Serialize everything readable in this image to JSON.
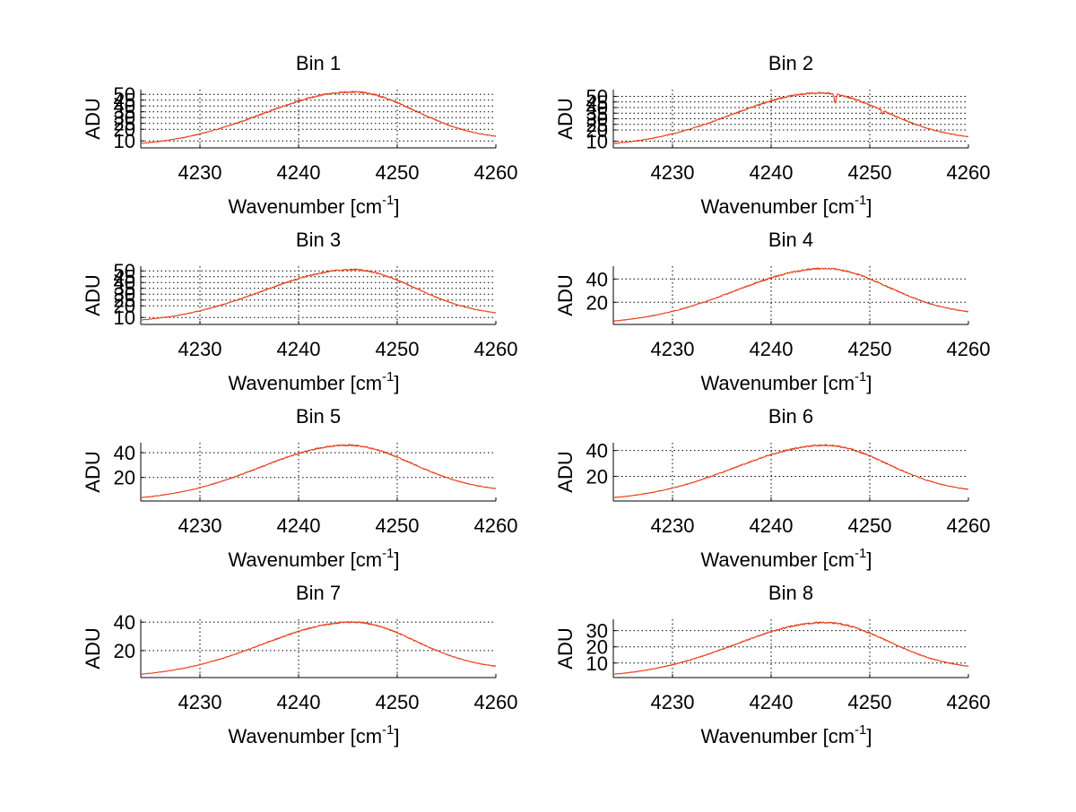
{
  "chart_data": [
    {
      "type": "line",
      "title": "Bin 1",
      "xlabel": "Wavenumber [cm",
      "xlabel_sup": "-1",
      "xlabel_end": "]",
      "ylabel": "ADU",
      "xlim": [
        4224,
        4260
      ],
      "ylim": [
        4,
        54
      ],
      "xticks": [
        4230,
        4240,
        4250,
        4260
      ],
      "yticks": [
        10,
        20,
        25,
        30,
        35,
        40,
        45,
        50
      ],
      "grid": true,
      "peak_x": 4245.5,
      "peak_y": 52,
      "base_y": 5,
      "end_y": 14,
      "noise": 0.7,
      "dips": []
    },
    {
      "type": "line",
      "title": "Bin 2",
      "xlabel": "Wavenumber [cm",
      "xlabel_sup": "-1",
      "xlabel_end": "]",
      "ylabel": "ADU",
      "xlim": [
        4224,
        4260
      ],
      "ylim": [
        4,
        56
      ],
      "xticks": [
        4230,
        4240,
        4250,
        4260
      ],
      "yticks": [
        10,
        20,
        25,
        30,
        35,
        40,
        45,
        50
      ],
      "grid": true,
      "peak_x": 4245.0,
      "peak_y": 53,
      "base_y": 5,
      "end_y": 14,
      "noise": 0.8,
      "dips": [
        {
          "x": 4246.5,
          "depth": 8
        },
        {
          "x": 4251.3,
          "depth": 3
        }
      ]
    },
    {
      "type": "line",
      "title": "Bin 3",
      "xlabel": "Wavenumber [cm",
      "xlabel_sup": "-1",
      "xlabel_end": "]",
      "ylabel": "ADU",
      "xlim": [
        4224,
        4260
      ],
      "ylim": [
        4,
        54
      ],
      "xticks": [
        4230,
        4240,
        4250,
        4260
      ],
      "yticks": [
        10,
        20,
        25,
        30,
        35,
        40,
        45,
        50
      ],
      "grid": true,
      "peak_x": 4245.5,
      "peak_y": 51,
      "base_y": 5,
      "end_y": 14,
      "noise": 0.7,
      "dips": []
    },
    {
      "type": "line",
      "title": "Bin 4",
      "xlabel": "Wavenumber [cm",
      "xlabel_sup": "-1",
      "xlabel_end": "]",
      "ylabel": "ADU",
      "xlim": [
        4224,
        4260
      ],
      "ylim": [
        1,
        51
      ],
      "xticks": [
        4230,
        4240,
        4250,
        4260
      ],
      "yticks": [
        20,
        40
      ],
      "grid": true,
      "peak_x": 4245.5,
      "peak_y": 49,
      "base_y": 1,
      "end_y": 12,
      "noise": 0.7,
      "dips": []
    },
    {
      "type": "line",
      "title": "Bin 5",
      "xlabel": "Wavenumber [cm",
      "xlabel_sup": "-1",
      "xlabel_end": "]",
      "ylabel": "ADU",
      "xlim": [
        4224,
        4260
      ],
      "ylim": [
        1,
        48
      ],
      "xticks": [
        4230,
        4240,
        4250,
        4260
      ],
      "yticks": [
        20,
        40
      ],
      "grid": true,
      "peak_x": 4245.0,
      "peak_y": 46,
      "base_y": 1,
      "end_y": 11,
      "noise": 0.6,
      "dips": []
    },
    {
      "type": "line",
      "title": "Bin 6",
      "xlabel": "Wavenumber [cm",
      "xlabel_sup": "-1",
      "xlabel_end": "]",
      "ylabel": "ADU",
      "xlim": [
        4224,
        4260
      ],
      "ylim": [
        1,
        46
      ],
      "xticks": [
        4230,
        4240,
        4250,
        4260
      ],
      "yticks": [
        20,
        40
      ],
      "grid": true,
      "peak_x": 4245.5,
      "peak_y": 44,
      "base_y": 1,
      "end_y": 10,
      "noise": 0.6,
      "dips": []
    },
    {
      "type": "line",
      "title": "Bin 7",
      "xlabel": "Wavenumber [cm",
      "xlabel_sup": "-1",
      "xlabel_end": "]",
      "ylabel": "ADU",
      "xlim": [
        4224,
        4260
      ],
      "ylim": [
        1,
        42
      ],
      "xticks": [
        4230,
        4240,
        4250,
        4260
      ],
      "yticks": [
        20,
        40
      ],
      "grid": true,
      "peak_x": 4245.5,
      "peak_y": 40,
      "base_y": 1,
      "end_y": 9,
      "noise": 0.5,
      "dips": []
    },
    {
      "type": "line",
      "title": "Bin 8",
      "xlabel": "Wavenumber [cm",
      "xlabel_sup": "-1",
      "xlabel_end": "]",
      "ylabel": "ADU",
      "xlim": [
        4224,
        4260
      ],
      "ylim": [
        1,
        37
      ],
      "xticks": [
        4230,
        4240,
        4250,
        4260
      ],
      "yticks": [
        10,
        20,
        30
      ],
      "grid": true,
      "peak_x": 4245.5,
      "peak_y": 35,
      "base_y": 1,
      "end_y": 8,
      "noise": 0.5,
      "dips": []
    }
  ],
  "colors": {
    "trace": "#e8401c",
    "axis": "#000000"
  }
}
